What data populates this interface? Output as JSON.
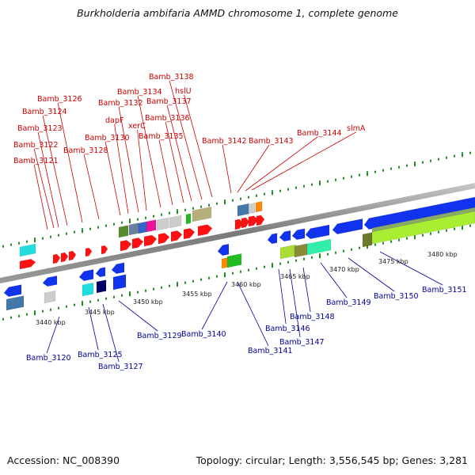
{
  "header": {
    "title": "Burkholderia ambifaria AMMD chromosome 1, complete genome"
  },
  "footer": {
    "accession": "Accession: NC_008390",
    "topology": "Topology: circular; Length: 3,556,545 bp; Genes: 3,281"
  },
  "colors": {
    "forward_labels": "#cc0000",
    "reverse_labels": "#000099",
    "backbone": "#808080"
  },
  "axis": {
    "ticks": [
      "3440 kbp",
      "3445 kbp",
      "3450 kbp",
      "3455 kbp",
      "3460 kbp",
      "3465 kbp",
      "3470 kbp",
      "3475 kbp",
      "3480 kbp"
    ]
  },
  "forward_labels": [
    "Bamb_3121",
    "Bamb_3122",
    "Bamb_3123",
    "Bamb_3124",
    "Bamb_3126",
    "Bamb_3128",
    "Bamb_3130",
    "dapF",
    "Bamb_3132",
    "xerC",
    "Bamb_3134",
    "Bamb_3135",
    "Bamb_3136",
    "Bamb_3137",
    "Bamb_3138",
    "hslU",
    "Bamb_3142",
    "Bamb_3143",
    "Bamb_3144",
    "slmA"
  ],
  "reverse_labels": [
    "Bamb_3120",
    "Bamb_3125",
    "Bamb_3127",
    "Bamb_3129",
    "Bamb_3140",
    "Bamb_3141",
    "Bamb_3146",
    "Bamb_3147",
    "Bamb_3148",
    "Bamb_3149",
    "Bamb_3150",
    "Bamb_3151"
  ]
}
